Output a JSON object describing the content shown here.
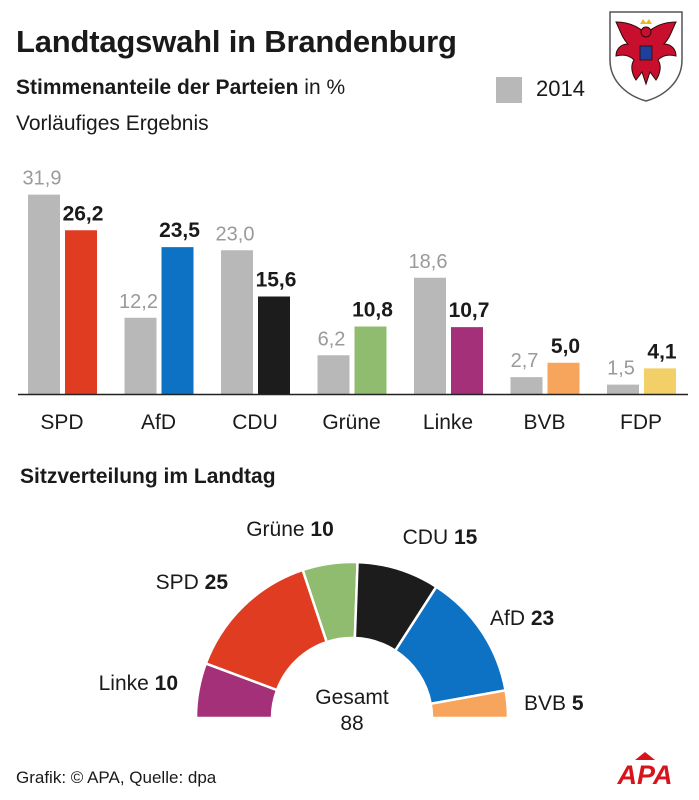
{
  "title": "Landtagswahl in Brandenburg",
  "subtitle_bold": "Stimmenanteile der Parteien",
  "subtitle_rest": " in %",
  "note": "Vorläufiges Ergebnis",
  "legend": {
    "label": "2014",
    "color": "#b8b8b8"
  },
  "seats_title": "Sitzverteilung im Landtag",
  "footer": "Grafik: © APA, Quelle: dpa",
  "logo_text": "APA",
  "chart_data": [
    {
      "type": "bar",
      "categories": [
        "SPD",
        "AfD",
        "CDU",
        "Grüne",
        "Linke",
        "BVB",
        "FDP"
      ],
      "series": [
        {
          "name": "2014",
          "values": [
            31.9,
            12.2,
            23.0,
            6.2,
            18.6,
            2.7,
            1.5
          ],
          "labels": [
            "31,9",
            "12,2",
            "23,0",
            "6,2",
            "18,6",
            "2,7",
            "1,5"
          ],
          "color": "#b8b8b8"
        },
        {
          "values": [
            26.2,
            23.5,
            15.6,
            10.8,
            10.7,
            5.0,
            4.1
          ],
          "labels": [
            "26,2",
            "23,5",
            "15,6",
            "10,8",
            "10,7",
            "5,0",
            "4,1"
          ],
          "colors": [
            "#e03c22",
            "#0d72c4",
            "#1c1c1c",
            "#8fbc6e",
            "#a4307a",
            "#f7a55c",
            "#f2d067"
          ]
        }
      ],
      "ylim": [
        0,
        32
      ]
    },
    {
      "type": "pie",
      "style": "parliament-semicircle",
      "categories": [
        "Linke",
        "SPD",
        "Grüne",
        "CDU",
        "AfD",
        "BVB"
      ],
      "values": [
        10,
        25,
        10,
        15,
        23,
        5
      ],
      "colors": [
        "#a4307a",
        "#e03c22",
        "#8fbc6e",
        "#1c1c1c",
        "#0d72c4",
        "#f7a55c"
      ],
      "total_label": "Gesamt",
      "total": 88
    }
  ]
}
